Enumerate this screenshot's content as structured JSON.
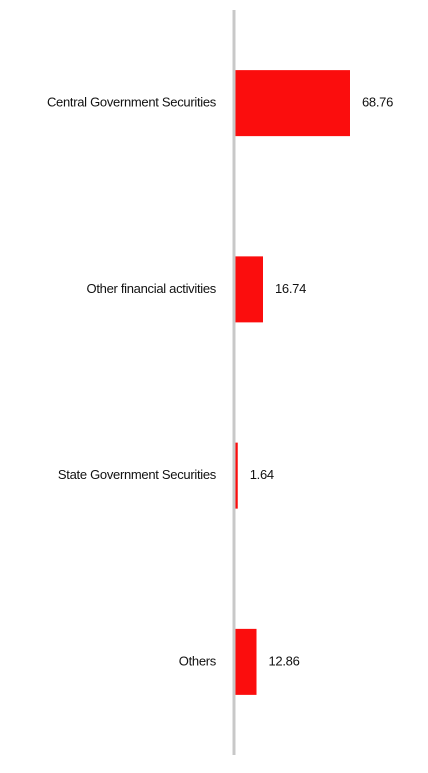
{
  "chart_data": {
    "type": "bar",
    "orientation": "horizontal",
    "categories": [
      "Central Government Securities",
      "Other financial activities",
      "State Government Securities",
      "Others"
    ],
    "values": [
      68.76,
      16.74,
      1.64,
      12.86
    ],
    "color": "#fb0d0d"
  }
}
